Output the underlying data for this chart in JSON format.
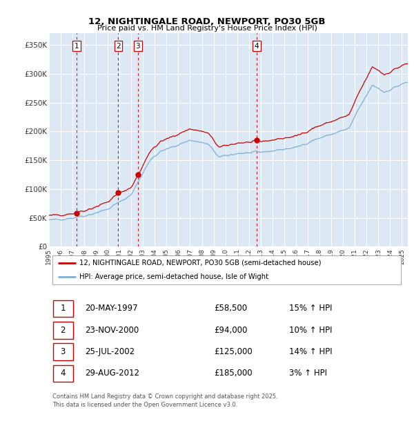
{
  "title_line1": "12, NIGHTINGALE ROAD, NEWPORT, PO30 5GB",
  "title_line2": "Price paid vs. HM Land Registry's House Price Index (HPI)",
  "ylim": [
    0,
    370000
  ],
  "xlim_start": 1995.0,
  "xlim_end": 2025.5,
  "plot_bg": "#dce9f5",
  "grid_color": "#ffffff",
  "sale_dates_year": [
    1997.38,
    2000.9,
    2002.57,
    2012.66
  ],
  "sale_prices": [
    58500,
    94000,
    125000,
    185000
  ],
  "transactions": [
    {
      "num": 1,
      "date": "20-MAY-1997",
      "price": "£58,500",
      "hpi": "15% ↑ HPI"
    },
    {
      "num": 2,
      "date": "23-NOV-2000",
      "price": "£94,000",
      "hpi": "10% ↑ HPI"
    },
    {
      "num": 3,
      "date": "25-JUL-2002",
      "price": "£125,000",
      "hpi": "14% ↑ HPI"
    },
    {
      "num": 4,
      "date": "29-AUG-2012",
      "price": "£185,000",
      "hpi": "3% ↑ HPI"
    }
  ],
  "legend_red": "12, NIGHTINGALE ROAD, NEWPORT, PO30 5GB (semi-detached house)",
  "legend_blue": "HPI: Average price, semi-detached house, Isle of Wight",
  "footer": "Contains HM Land Registry data © Crown copyright and database right 2025.\nThis data is licensed under the Open Government Licence v3.0.",
  "red_color": "#cc0000",
  "blue_color": "#7bafd4",
  "vline_color": "#cc0000",
  "dot_color": "#cc0000",
  "ytick_labels": [
    "£0",
    "£50K",
    "£100K",
    "£150K",
    "£200K",
    "£250K",
    "£300K",
    "£350K"
  ],
  "ytick_values": [
    0,
    50000,
    100000,
    150000,
    200000,
    250000,
    300000,
    350000
  ]
}
